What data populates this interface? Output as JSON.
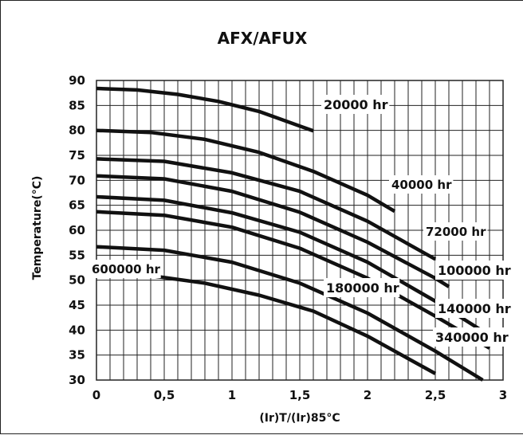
{
  "chart_data": {
    "type": "line",
    "title": "AFX/AFUX",
    "xlabel": "(Ir)T/(Ir)85°C",
    "ylabel": "Temperature(°C)",
    "xlim": [
      0,
      3
    ],
    "ylim": [
      30,
      90
    ],
    "x_ticks": [
      "0",
      "0,5",
      "1",
      "1,5",
      "2",
      "2,5",
      "3"
    ],
    "y_ticks": [
      "30",
      "35",
      "40",
      "45",
      "50",
      "55",
      "60",
      "65",
      "70",
      "75",
      "80",
      "85",
      "90"
    ],
    "grid": true,
    "series": [
      {
        "name": "20000 hr",
        "x": [
          0,
          0.3,
          0.6,
          0.9,
          1.2,
          1.6
        ],
        "y": [
          88.4,
          88.1,
          87.2,
          85.8,
          83.8,
          79.9
        ]
      },
      {
        "name": "40000 hr",
        "x": [
          0,
          0.4,
          0.8,
          1.2,
          1.6,
          2.0,
          2.2
        ],
        "y": [
          80.0,
          79.6,
          78.2,
          75.6,
          71.8,
          67.0,
          63.8
        ]
      },
      {
        "name": "72000 hr",
        "x": [
          0,
          0.5,
          1.0,
          1.5,
          2.0,
          2.5
        ],
        "y": [
          74.3,
          73.8,
          71.5,
          67.8,
          61.8,
          54.2
        ]
      },
      {
        "name": "100000 hr",
        "x": [
          0,
          0.5,
          1.0,
          1.5,
          2.0,
          2.5,
          2.6
        ],
        "y": [
          70.9,
          70.3,
          67.8,
          63.6,
          57.6,
          50.4,
          48.7
        ]
      },
      {
        "name": "140000 hr",
        "x": [
          0,
          0.5,
          1.0,
          1.5,
          2.0,
          2.5,
          2.85
        ],
        "y": [
          66.7,
          66.0,
          63.5,
          59.6,
          53.6,
          45.8,
          39.8
        ]
      },
      {
        "name": "180000 hr",
        "x": [
          0,
          0.5,
          1.0,
          1.5,
          2.0,
          2.5,
          2.9
        ],
        "y": [
          63.7,
          63.0,
          60.6,
          56.4,
          50.4,
          42.8,
          36.4
        ]
      },
      {
        "name": "340000 hr",
        "x": [
          0,
          0.5,
          1.0,
          1.5,
          2.0,
          2.5,
          2.85
        ],
        "y": [
          56.7,
          56.0,
          53.6,
          49.4,
          43.4,
          35.8,
          30.0
        ]
      },
      {
        "name": "600000 hr",
        "x": [
          0,
          0.4,
          0.8,
          1.2,
          1.6,
          2.0,
          2.5
        ],
        "y": [
          51.4,
          50.9,
          49.4,
          47.0,
          43.8,
          38.8,
          31.3
        ]
      }
    ],
    "annotations": [
      "20000 hr",
      "40000 hr",
      "72000 hr",
      "100000 hr",
      "140000 hr",
      "180000 hr",
      "340000 hr",
      "600000 hr"
    ],
    "style": {
      "line_color": "#111111",
      "grid_color": "#222222",
      "background": "#ffffff"
    }
  }
}
